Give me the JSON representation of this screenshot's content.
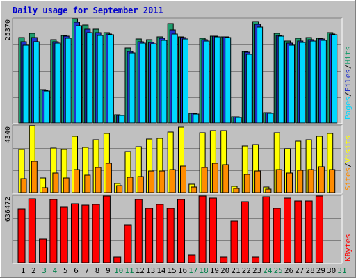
{
  "chart_data": {
    "type": "bar",
    "title": "Daily usage for September 2011",
    "categories": [
      "1",
      "2",
      "3",
      "4",
      "5",
      "6",
      "7",
      "8",
      "9",
      "10",
      "11",
      "12",
      "13",
      "14",
      "15",
      "16",
      "17",
      "18",
      "19",
      "20",
      "21",
      "22",
      "23",
      "24",
      "25",
      "26",
      "27",
      "28",
      "29",
      "30",
      "31"
    ],
    "weekend_days": [
      "3",
      "4",
      "10",
      "11",
      "17",
      "18",
      "24",
      "25",
      "31"
    ],
    "panels": [
      {
        "name": "top",
        "scale_label": "25370",
        "ymax": 25370,
        "series": [
          {
            "name": "Hits",
            "color": "#1e9d6e",
            "values": [
              20800,
              21800,
              8200,
              20300,
              21300,
              25370,
              23800,
              22800,
              22000,
              2000,
              18300,
              20400,
              20300,
              21000,
              24200,
              21000,
              2400,
              20700,
              21200,
              20900,
              1600,
              17500,
              24700,
              2600,
              21900,
              20000,
              20700,
              20800,
              20700,
              22000
            ]
          },
          {
            "name": "Files",
            "color": "#2233cc",
            "values": [
              19800,
              20800,
              7900,
              19800,
              21100,
              24600,
              22800,
              22000,
              21600,
              1900,
              17400,
              19800,
              19700,
              20600,
              22600,
              20800,
              2300,
              20300,
              21100,
              20900,
              1500,
              17200,
              24000,
              2500,
              21300,
              19400,
              19900,
              20300,
              20500,
              21700
            ]
          },
          {
            "name": "Pages",
            "color": "#00d8ff",
            "values": [
              19000,
              19800,
              7700,
              19500,
              20600,
              23600,
              22000,
              21300,
              21400,
              1800,
              17000,
              19400,
              19200,
              20200,
              21700,
              20500,
              2200,
              20000,
              20900,
              20800,
              1400,
              16800,
              23400,
              2400,
              21100,
              18900,
              19600,
              20000,
              20200,
              21500
            ]
          }
        ]
      },
      {
        "name": "middle",
        "scale_label": "4340",
        "ymax": 4340,
        "series": [
          {
            "name": "Visits",
            "color": "#ffff00",
            "values": [
              2800,
              4340,
              950,
              2900,
              2800,
              3640,
              2950,
              3450,
              3860,
              570,
              2650,
              2970,
              3490,
              3510,
              3940,
              4240,
              520,
              3890,
              4010,
              4010,
              410,
              3050,
              3100,
              340,
              3900,
              2850,
              3330,
              3420,
              3680,
              3860
            ]
          },
          {
            "name": "Sites",
            "color": "#ff8c00",
            "values": [
              900,
              2050,
              300,
              1280,
              960,
              1510,
              1130,
              1640,
              1920,
              430,
              1010,
              1040,
              1390,
              1390,
              1470,
              1730,
              370,
              1620,
              1880,
              1790,
              280,
              1180,
              1380,
              220,
              1470,
              1260,
              1450,
              1470,
              1670,
              1470
            ]
          }
        ]
      },
      {
        "name": "bottom",
        "scale_label": "636472",
        "ymax": 636472,
        "series": [
          {
            "name": "KBytes",
            "color": "#ff0000",
            "values": [
              512000,
              607000,
              223000,
              603000,
              528000,
              562000,
              548000,
              560000,
              636472,
              50000,
              358000,
              602000,
              520000,
              560000,
              514000,
              603000,
              72000,
              636000,
              617000,
              50000,
              398000,
              583000,
              52000,
              628000,
              520000,
              615000,
              590000,
              590000,
              636472,
              0
            ]
          }
        ]
      }
    ],
    "legend_top": [
      {
        "text": "Pages",
        "color": "#00d8ff"
      },
      {
        "text": "/",
        "color": "#000000"
      },
      {
        "text": "Files",
        "color": "#2233cc"
      },
      {
        "text": "/",
        "color": "#000000"
      },
      {
        "text": "Hits",
        "color": "#1e9d6e"
      }
    ],
    "legend_middle": [
      {
        "text": "Sites",
        "color": "#ff8c00"
      },
      {
        "text": "/",
        "color": "#000000"
      },
      {
        "text": "Visits",
        "color": "#ffff00"
      }
    ],
    "legend_bottom": [
      {
        "text": "KBytes",
        "color": "#ff0000"
      }
    ],
    "colors": {
      "background": "#c0c0c0",
      "title": "#0000cc",
      "weekday_label": "#000000",
      "weekend_label": "#00804a",
      "grid": "#808080"
    }
  }
}
